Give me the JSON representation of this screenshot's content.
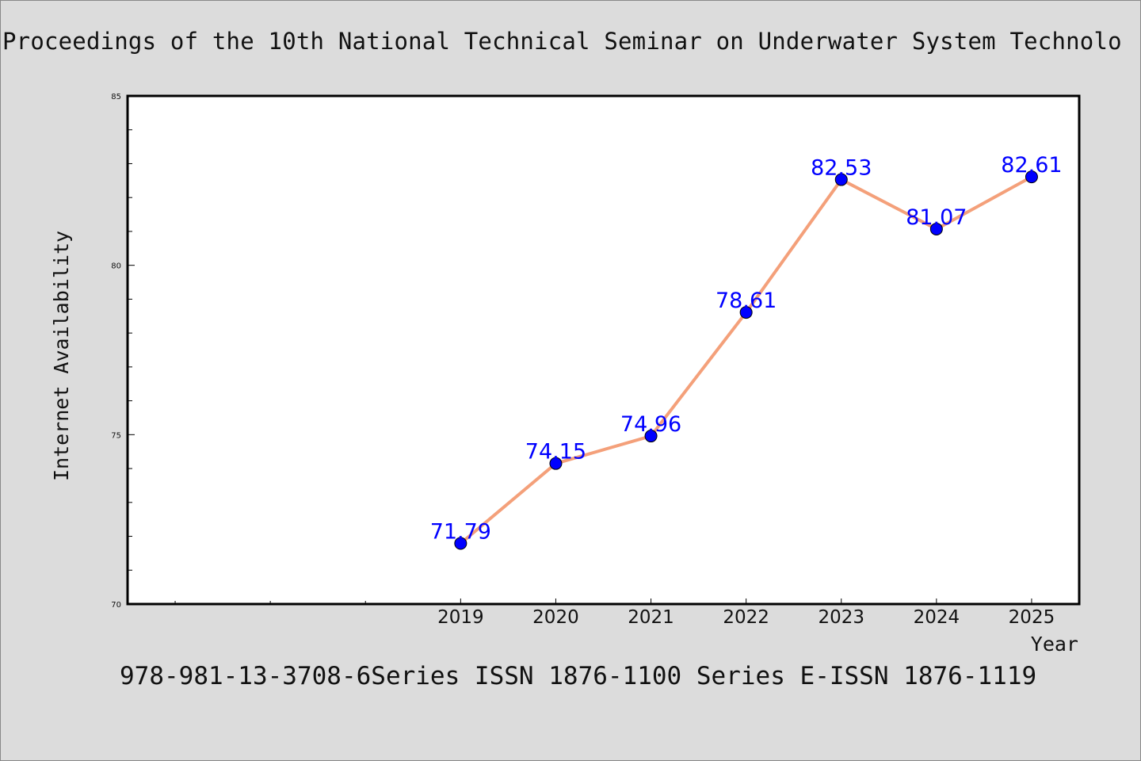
{
  "chart_data": {
    "type": "line",
    "title": "Proceedings of the 10th National Technical Seminar on Underwater System Technolo",
    "xlabel": "Year",
    "ylabel": "Internet Availability",
    "footer": "978-981-13-3708-6Series ISSN 1876-1100 Series E-ISSN 1876-1119",
    "x": [
      "2019",
      "2020",
      "2021",
      "2022",
      "2023",
      "2024",
      "2025"
    ],
    "x_positions": [
      2019,
      2020,
      2021,
      2022,
      2023,
      2024,
      2025
    ],
    "xlim": [
      2015.5,
      2025.5
    ],
    "ylim": [
      70,
      85
    ],
    "y_ticks": [
      70,
      75,
      80,
      85
    ],
    "series": [
      {
        "values": [
          71.79,
          74.15,
          74.96,
          78.61,
          82.53,
          81.07,
          82.61
        ]
      }
    ],
    "data_labels": [
      "71.79",
      "74.15",
      "74.96",
      "78.61",
      "82.53",
      "81.07",
      "82.61"
    ],
    "line_color": "#f4a07a",
    "marker_color": "#0000ff",
    "label_color": "#0000ff",
    "grid": false,
    "legend": "none"
  }
}
